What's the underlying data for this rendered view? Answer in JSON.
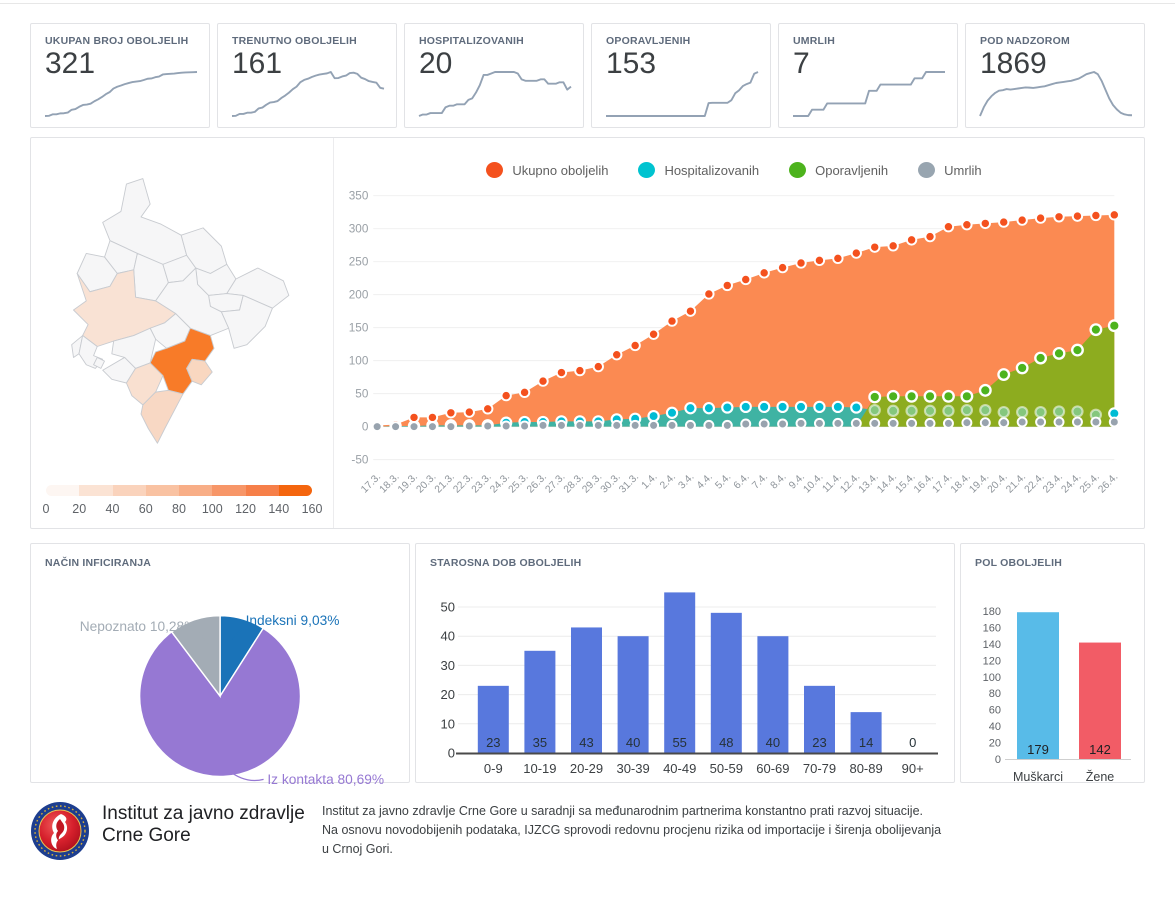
{
  "stat_cards": [
    {
      "label": "UKUPAN BROJ OBOLJELIH",
      "value": "321",
      "trend": [
        2,
        3,
        14,
        14,
        21,
        22,
        27,
        47,
        52,
        69,
        82,
        85,
        91,
        109,
        123,
        140,
        160,
        175,
        201,
        214,
        223,
        233,
        241,
        248,
        252,
        255,
        263,
        272,
        274,
        283,
        288,
        303,
        306,
        308,
        310,
        313,
        316,
        318,
        319,
        320,
        321
      ]
    },
    {
      "label": "TRENUTNO OBOLJELIH",
      "value": "161",
      "trend": [
        2,
        3,
        14,
        14,
        21,
        21,
        26,
        46,
        51,
        67,
        80,
        83,
        89,
        107,
        121,
        138,
        158,
        173,
        199,
        212,
        219,
        229,
        237,
        243,
        247,
        250,
        258,
        222,
        223,
        232,
        237,
        252,
        254,
        247,
        225,
        217,
        205,
        200,
        196,
        166,
        161
      ]
    },
    {
      "label": "HOSPITALIZOVANIH",
      "value": "20",
      "trend": [
        0,
        1,
        1,
        2,
        2,
        2,
        2,
        6,
        7,
        7,
        8,
        8,
        8,
        11,
        12,
        16,
        21,
        28,
        28,
        29,
        30,
        30,
        30,
        30,
        30,
        30,
        29,
        25,
        24,
        24,
        24,
        24,
        25,
        25,
        22,
        22,
        22,
        23,
        23,
        18,
        20
      ]
    },
    {
      "label": "OPORAVLJENIH",
      "value": "153",
      "trend": [
        0,
        0,
        0,
        0,
        0,
        0,
        0,
        0,
        0,
        0,
        0,
        0,
        0,
        0,
        0,
        0,
        0,
        0,
        0,
        0,
        0,
        0,
        0,
        0,
        0,
        0,
        0,
        45,
        46,
        46,
        46,
        46,
        46,
        55,
        79,
        89,
        104,
        111,
        116,
        147,
        153
      ]
    },
    {
      "label": "UMRLIH",
      "value": "7",
      "trend": [
        0,
        0,
        0,
        0,
        0,
        1,
        1,
        1,
        1,
        2,
        2,
        2,
        2,
        2,
        2,
        2,
        2,
        2,
        2,
        2,
        4,
        4,
        4,
        5,
        5,
        5,
        5,
        5,
        5,
        5,
        5,
        5,
        6,
        6,
        6,
        7,
        7,
        7,
        7,
        7,
        7
      ]
    },
    {
      "label": "POD NADZOROM",
      "value": "1869",
      "trend": [
        1800,
        2600,
        3200,
        3600,
        3900,
        4100,
        4150,
        4250,
        4200,
        4250,
        4300,
        4350,
        4400,
        4380,
        4350,
        4400,
        4450,
        4500,
        4600,
        4700,
        4800,
        4850,
        4900,
        4950,
        5000,
        5100,
        5200,
        5400,
        5600,
        5700,
        5800,
        5600,
        5000,
        4200,
        3400,
        2800,
        2400,
        2100,
        1950,
        1880,
        1869
      ]
    }
  ],
  "map": {
    "scale_ticks": [
      "0",
      "20",
      "40",
      "60",
      "80",
      "100",
      "120",
      "140",
      "160"
    ],
    "scale_colors": [
      "#fdf6f2",
      "#fbe3d4",
      "#fad3bc",
      "#f9c2a2",
      "#f8ae87",
      "#f79668",
      "#f67f49",
      "#f4650e"
    ],
    "region_fill_default": "#f6f6f7",
    "region_fill_low": "#f9e2d4",
    "region_fill_mid": "#f9d7c0",
    "region_fill_high": "#f87b28",
    "border_color": "#c8cbd0"
  },
  "chart_data": [
    {
      "type": "area",
      "legend_position": "top",
      "ylim": [
        -50,
        350
      ],
      "yticks": [
        -50,
        0,
        50,
        100,
        150,
        200,
        250,
        300,
        350
      ],
      "x": [
        "17.3.",
        "18.3.",
        "19.3.",
        "20.3.",
        "21.3.",
        "22.3.",
        "23.3.",
        "24.3.",
        "25.3.",
        "26.3.",
        "27.3.",
        "28.3.",
        "29.3.",
        "30.3.",
        "31.3.",
        "1.4.",
        "2.4.",
        "3.4.",
        "4.4.",
        "5.4.",
        "6.4.",
        "7.4.",
        "8.4.",
        "9.4.",
        "10.4.",
        "11.4.",
        "12.4.",
        "13.4.",
        "14.4.",
        "15.4.",
        "16.4.",
        "17.4.",
        "18.4.",
        "19.4.",
        "20.4.",
        "21.4.",
        "22.4.",
        "23.4.",
        "24.4.",
        "25.4.",
        "26.4."
      ],
      "series": [
        {
          "name": "Ukupno oboljelih",
          "dot_color": "#f4511e",
          "area_color": "#fb8a52",
          "values": [
            2,
            3,
            14,
            14,
            21,
            22,
            27,
            47,
            52,
            69,
            82,
            85,
            91,
            109,
            123,
            140,
            160,
            175,
            201,
            214,
            223,
            233,
            241,
            248,
            252,
            255,
            263,
            272,
            274,
            283,
            288,
            303,
            306,
            308,
            310,
            313,
            316,
            318,
            319,
            320,
            321
          ]
        },
        {
          "name": "Hospitalizovanih",
          "dot_color": "#00bcd4",
          "area_color": "#3fb3a3",
          "values": [
            0,
            1,
            1,
            2,
            2,
            2,
            2,
            6,
            7,
            7,
            8,
            8,
            8,
            11,
            12,
            16,
            21,
            28,
            28,
            29,
            30,
            30,
            30,
            30,
            30,
            30,
            29,
            25,
            24,
            24,
            24,
            24,
            25,
            25,
            22,
            22,
            22,
            23,
            23,
            18,
            20
          ]
        },
        {
          "name": "Oporavljenih",
          "dot_color": "#4db31d",
          "area_color": "#8dac1f",
          "values": [
            0,
            0,
            0,
            0,
            0,
            0,
            0,
            0,
            0,
            0,
            0,
            0,
            0,
            0,
            0,
            0,
            0,
            0,
            0,
            0,
            0,
            0,
            0,
            0,
            0,
            0,
            0,
            45,
            46,
            46,
            46,
            46,
            46,
            55,
            79,
            89,
            104,
            111,
            116,
            147,
            153
          ]
        },
        {
          "name": "Umrlih",
          "dot_color": "#98a3ae",
          "area_color": null,
          "values": [
            0,
            0,
            0,
            0,
            0,
            1,
            1,
            1,
            1,
            2,
            2,
            2,
            2,
            2,
            2,
            2,
            2,
            2,
            2,
            2,
            4,
            4,
            4,
            5,
            5,
            5,
            5,
            5,
            5,
            5,
            5,
            5,
            6,
            6,
            6,
            7,
            7,
            7,
            7,
            7,
            7
          ]
        }
      ]
    },
    {
      "type": "pie",
      "title": "NAČIN INFICIRANJA",
      "slices": [
        {
          "label": "Indeksni",
          "pct": 9.03,
          "display": "Indeksni 9,03%",
          "color": "#1a73b8"
        },
        {
          "label": "Iz kontakta",
          "pct": 80.69,
          "display": "Iz kontakta 80,69%",
          "color": "#9678d3"
        },
        {
          "label": "Nepoznato",
          "pct": 10.28,
          "display": "Nepoznato 10,28%",
          "color": "#a3acb5"
        }
      ]
    },
    {
      "type": "bar",
      "title": "STAROSNA DOB OBOLJELIH",
      "categories": [
        "0-9",
        "10-19",
        "20-29",
        "30-39",
        "40-49",
        "50-59",
        "60-69",
        "70-79",
        "80-89",
        "90+"
      ],
      "values": [
        23,
        35,
        43,
        40,
        55,
        48,
        40,
        23,
        14,
        0
      ],
      "yticks": [
        0,
        10,
        20,
        30,
        40,
        50
      ],
      "color": "#5878dd"
    },
    {
      "type": "bar",
      "title": "POL OBOLJELIH",
      "categories": [
        "Muškarci",
        "Žene"
      ],
      "values": [
        179,
        142
      ],
      "colors": [
        "#58bbe8",
        "#f25c66"
      ],
      "yticks": [
        0,
        20,
        40,
        60,
        80,
        100,
        120,
        140,
        160,
        180
      ]
    }
  ],
  "footer": {
    "org_name": "Institut za javno zdravlje\nCrne Gore",
    "description": "Institut za javno zdravlje Crne Gore u saradnji sa međunarodnim partnerima konstantno prati razvoj situacije.\nNa osnovu novodobijenih podataka, IJZCG sprovodi redovnu procjenu rizika od importacije i širenja obolijevanja\nu Crnoj Gori."
  }
}
